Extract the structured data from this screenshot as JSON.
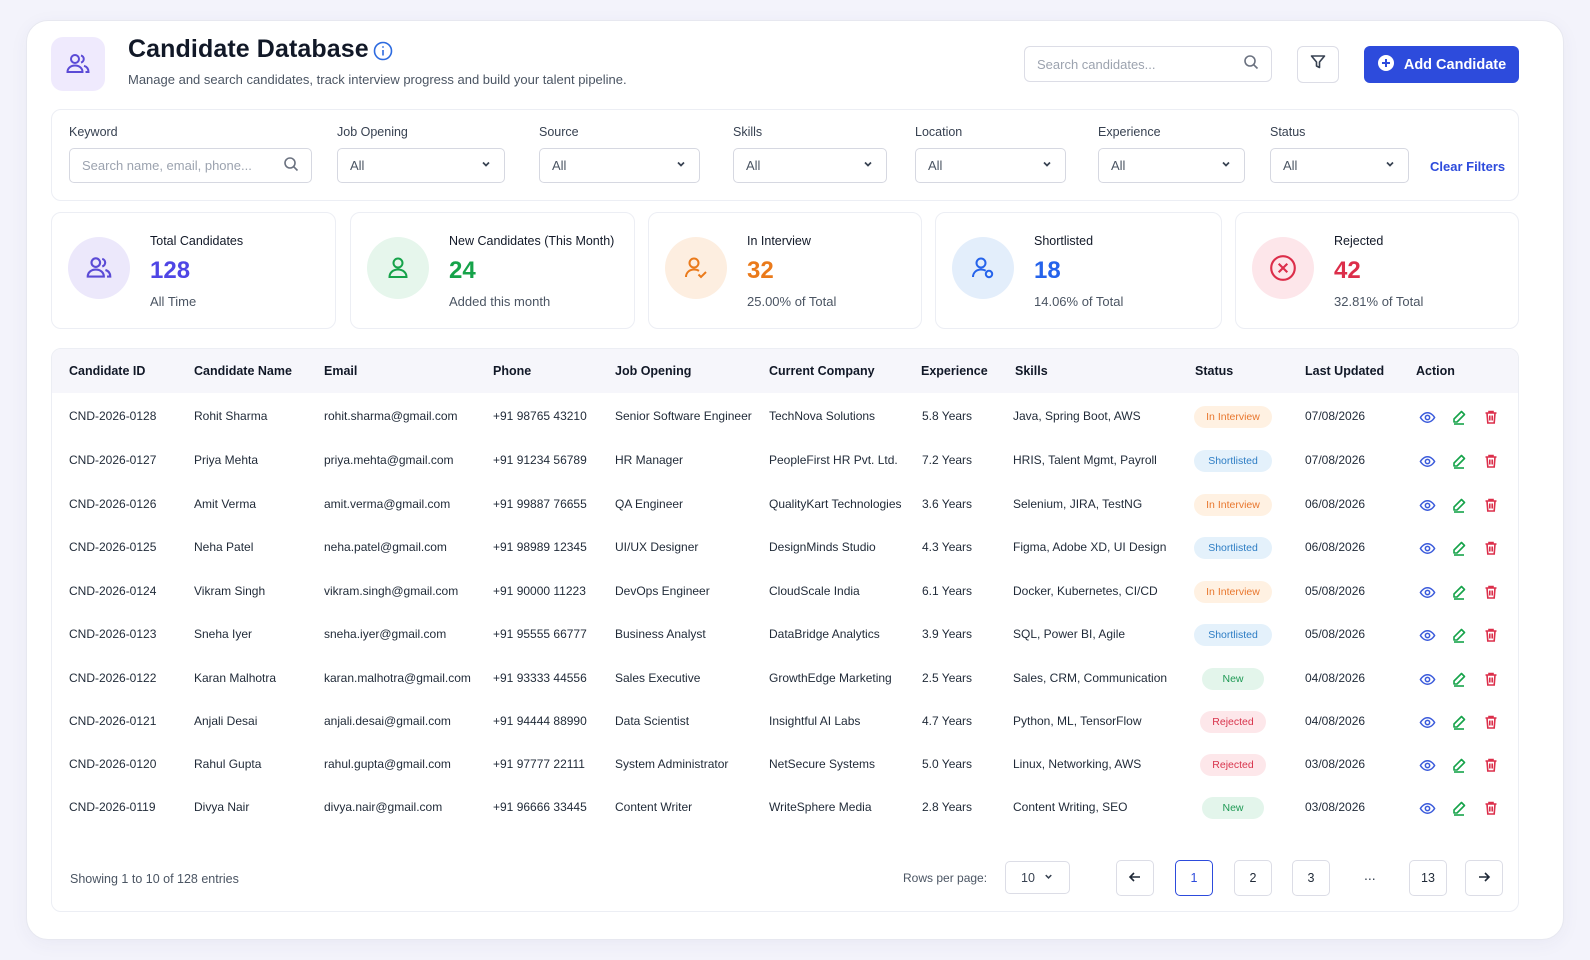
{
  "header": {
    "title": "Candidate Database",
    "subtitle": "Manage and search candidates, track interview progress and build your talent pipeline.",
    "search_placeholder": "Search candidates...",
    "add_label": "Add Candidate"
  },
  "filters": {
    "keyword_label": "Keyword",
    "keyword_placeholder": "Search name, email, phone...",
    "job_opening_label": "Job Opening",
    "job_opening_value": "All",
    "source_label": "Source",
    "source_value": "All",
    "skills_label": "Skills",
    "skills_value": "All",
    "location_label": "Location",
    "location_value": "All",
    "experience_label": "Experience",
    "experience_value": "All",
    "status_label": "Status",
    "status_value": "All",
    "clear_label": "Clear Filters"
  },
  "stats": [
    {
      "title": "Total Candidates",
      "value": "128",
      "sub": "All Time",
      "color": "#4f46e5"
    },
    {
      "title": "New Candidates (This Month)",
      "value": "24",
      "sub": "Added this month",
      "color": "#16a34a"
    },
    {
      "title": "In Interview",
      "value": "32",
      "sub": "25.00% of Total",
      "color": "#ea7a1b"
    },
    {
      "title": "Shortlisted",
      "value": "18",
      "sub": "14.06% of Total",
      "color": "#2563eb"
    },
    {
      "title": "Rejected",
      "value": "42",
      "sub": "32.81% of Total",
      "color": "#dc2e4a"
    }
  ],
  "table": {
    "headers": [
      "Candidate ID",
      "Candidate Name",
      "Email",
      "Phone",
      "Job Opening",
      "Current Company",
      "Experience",
      "Skills",
      "Status",
      "Last Updated",
      "Action"
    ],
    "rows": [
      {
        "id": "CND-2026-0128",
        "name": "Rohit Sharma",
        "email": "rohit.sharma@gmail.com",
        "phone": "+91 98765 43210",
        "job": "Senior Software Engineer",
        "company": "TechNova Solutions",
        "exp": "5.8 Years",
        "skills": "Java, Spring Boot, AWS",
        "status": "In Interview",
        "updated": "07/08/2026"
      },
      {
        "id": "CND-2026-0127",
        "name": "Priya Mehta",
        "email": "priya.mehta@gmail.com",
        "phone": "+91 91234 56789",
        "job": "HR Manager",
        "company": "PeopleFirst HR Pvt. Ltd.",
        "exp": "7.2 Years",
        "skills": "HRIS, Talent Mgmt, Payroll",
        "status": "Shortlisted",
        "updated": "07/08/2026"
      },
      {
        "id": "CND-2026-0126",
        "name": "Amit Verma",
        "email": "amit.verma@gmail.com",
        "phone": "+91 99887 76655",
        "job": "QA Engineer",
        "company": "QualityKart Technologies",
        "exp": "3.6 Years",
        "skills": "Selenium, JIRA, TestNG",
        "status": "In Interview",
        "updated": "06/08/2026"
      },
      {
        "id": "CND-2026-0125",
        "name": "Neha Patel",
        "email": "neha.patel@gmail.com",
        "phone": "+91 98989 12345",
        "job": "UI/UX Designer",
        "company": "DesignMinds Studio",
        "exp": "4.3 Years",
        "skills": "Figma, Adobe XD, UI Design",
        "status": "Shortlisted",
        "updated": "06/08/2026"
      },
      {
        "id": "CND-2026-0124",
        "name": "Vikram Singh",
        "email": "vikram.singh@gmail.com",
        "phone": "+91 90000 11223",
        "job": "DevOps Engineer",
        "company": "CloudScale India",
        "exp": "6.1 Years",
        "skills": "Docker, Kubernetes, CI/CD",
        "status": "In Interview",
        "updated": "05/08/2026"
      },
      {
        "id": "CND-2026-0123",
        "name": "Sneha Iyer",
        "email": "sneha.iyer@gmail.com",
        "phone": "+91 95555 66777",
        "job": "Business Analyst",
        "company": "DataBridge Analytics",
        "exp": "3.9 Years",
        "skills": "SQL, Power BI, Agile",
        "status": "Shortlisted",
        "updated": "05/08/2026"
      },
      {
        "id": "CND-2026-0122",
        "name": "Karan Malhotra",
        "email": "karan.malhotra@gmail.com",
        "phone": "+91 93333 44556",
        "job": "Sales Executive",
        "company": "GrowthEdge Marketing",
        "exp": "2.5 Years",
        "skills": "Sales, CRM, Communication",
        "status": "New",
        "updated": "04/08/2026"
      },
      {
        "id": "CND-2026-0121",
        "name": "Anjali Desai",
        "email": "anjali.desai@gmail.com",
        "phone": "+91 94444 88990",
        "job": "Data Scientist",
        "company": "Insightful AI Labs",
        "exp": "4.7 Years",
        "skills": "Python, ML, TensorFlow",
        "status": "Rejected",
        "updated": "04/08/2026"
      },
      {
        "id": "CND-2026-0120",
        "name": "Rahul Gupta",
        "email": "rahul.gupta@gmail.com",
        "phone": "+91 97777 22111",
        "job": "System Administrator",
        "company": "NetSecure Systems",
        "exp": "5.0 Years",
        "skills": "Linux, Networking, AWS",
        "status": "Rejected",
        "updated": "03/08/2026"
      },
      {
        "id": "CND-2026-0119",
        "name": "Divya Nair",
        "email": "divya.nair@gmail.com",
        "phone": "+91 96666 33445",
        "job": "Content Writer",
        "company": "WriteSphere Media",
        "exp": "2.8 Years",
        "skills": "Content Writing, SEO",
        "status": "New",
        "updated": "03/08/2026"
      }
    ]
  },
  "pagination": {
    "showing": "Showing 1 to 10 of 128 entries",
    "rows_label": "Rows per page:",
    "rows_value": "10",
    "pages": [
      "1",
      "2",
      "3",
      "13"
    ],
    "dots": "...",
    "prev": "←",
    "next": "→"
  },
  "colors": {
    "accent": "#2d4bdc"
  }
}
